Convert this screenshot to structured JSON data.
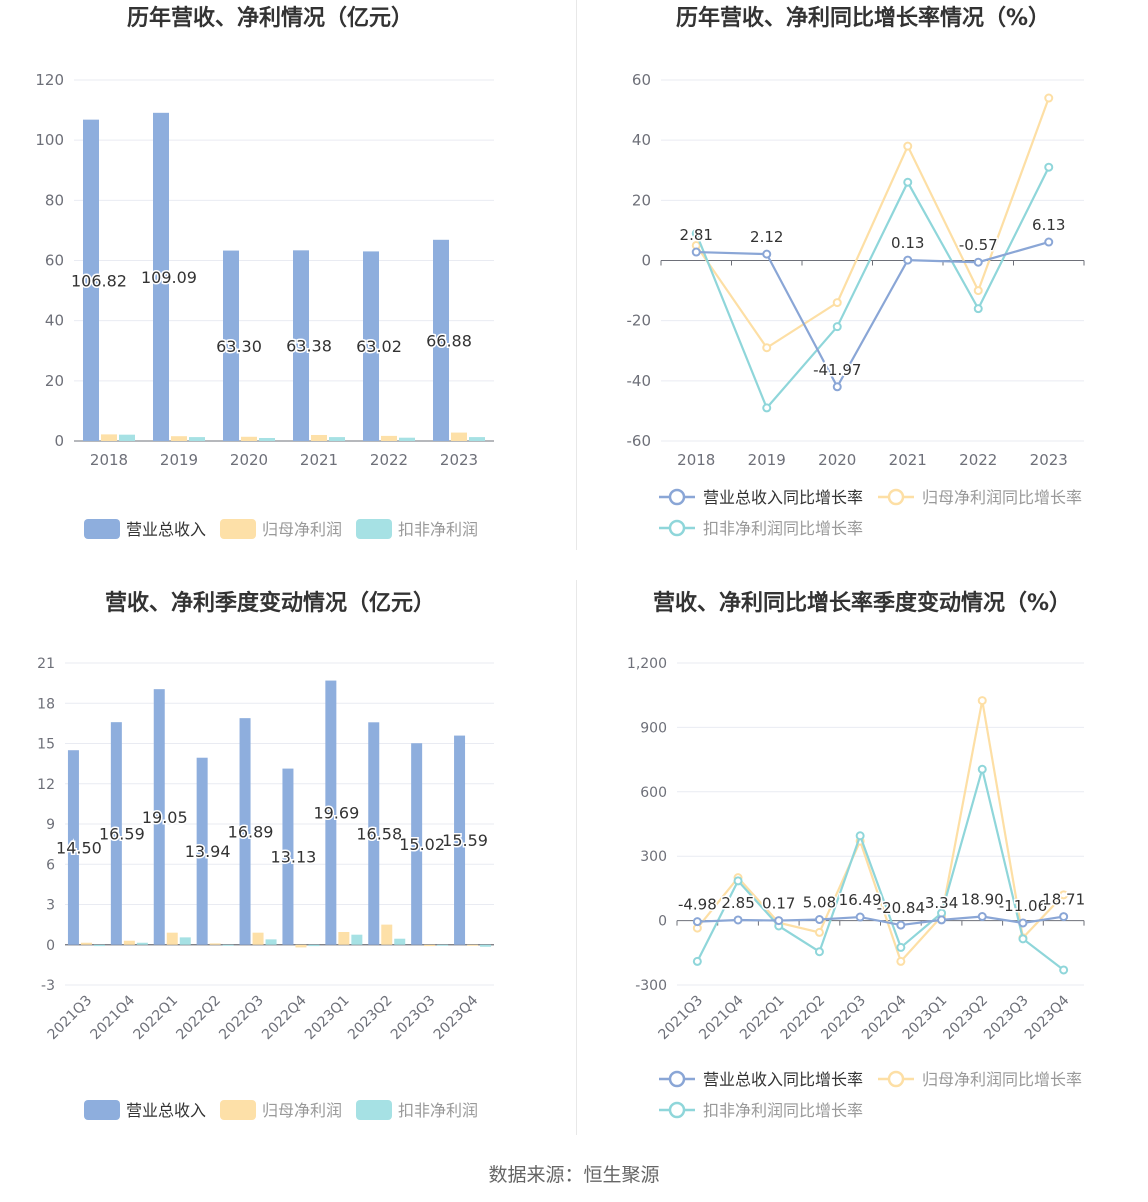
{
  "colors": {
    "revenue": "#8eaedd",
    "net_profit": "#fde0a8",
    "deducted_profit": "#a6e1e4",
    "revenue_line": "#8aa6d6",
    "net_profit_line": "#fddfa5",
    "deducted_line": "#8fd6da",
    "grid": "#e9ebf2",
    "axis_text": "#6e7079",
    "title": "#333333"
  },
  "footer": {
    "source": "数据来源：恒生聚源"
  },
  "chart_data": [
    {
      "id": "annual-bar",
      "type": "bar",
      "title": "历年营收、净利情况（亿元）",
      "categories": [
        "2018",
        "2019",
        "2020",
        "2021",
        "2022",
        "2023"
      ],
      "ylim": [
        0,
        120
      ],
      "yticks": [
        0,
        20,
        40,
        60,
        80,
        100,
        120
      ],
      "series": [
        {
          "name": "营业总收入",
          "values": [
            106.82,
            109.09,
            63.3,
            63.38,
            63.02,
            66.88
          ],
          "labels": [
            "106.82",
            "109.09",
            "63.30",
            "63.38",
            "63.02",
            "66.88"
          ]
        },
        {
          "name": "归母净利润",
          "values": [
            2.2,
            1.6,
            1.4,
            2.0,
            1.7,
            2.8
          ]
        },
        {
          "name": "扣非净利润",
          "values": [
            2.1,
            1.3,
            1.0,
            1.3,
            1.1,
            1.3
          ]
        }
      ],
      "legend": "bottom"
    },
    {
      "id": "annual-line",
      "type": "line",
      "title": "历年营收、净利同比增长率情况（%）",
      "categories": [
        "2018",
        "2019",
        "2020",
        "2021",
        "2022",
        "2023"
      ],
      "ylim": [
        -60,
        60
      ],
      "yticks": [
        -60,
        -40,
        -20,
        0,
        20,
        40,
        60
      ],
      "series": [
        {
          "name": "营业总收入同比增长率",
          "values": [
            2.81,
            2.12,
            -41.97,
            0.13,
            -0.57,
            6.13
          ],
          "labels": [
            "2.81",
            "2.12",
            "-41.97",
            "0.13",
            "-0.57",
            "6.13"
          ]
        },
        {
          "name": "归母净利润同比增长率",
          "values": [
            5,
            -29,
            -14,
            38,
            -10,
            54
          ]
        },
        {
          "name": "扣非净利润同比增长率",
          "values": [
            9,
            -49,
            -22,
            26,
            -16,
            31
          ]
        }
      ],
      "legend": "bottom"
    },
    {
      "id": "quarter-bar",
      "type": "bar",
      "title": "营收、净利季度变动情况（亿元）",
      "categories": [
        "2021Q3",
        "2021Q4",
        "2022Q1",
        "2022Q2",
        "2022Q3",
        "2022Q4",
        "2023Q1",
        "2023Q2",
        "2023Q3",
        "2023Q4"
      ],
      "ylim": [
        -3,
        21
      ],
      "yticks": [
        -3,
        0,
        3,
        6,
        9,
        12,
        15,
        18,
        21
      ],
      "series": [
        {
          "name": "营业总收入",
          "values": [
            14.5,
            16.59,
            19.05,
            13.94,
            16.89,
            13.13,
            19.69,
            16.58,
            15.02,
            15.59
          ],
          "labels": [
            "14.50",
            "16.59",
            "19.05",
            "13.94",
            "16.89",
            "13.13",
            "19.69",
            "16.58",
            "15.02",
            "15.59"
          ]
        },
        {
          "name": "归母净利润",
          "values": [
            0.15,
            0.3,
            0.9,
            0.1,
            0.9,
            -0.2,
            0.95,
            1.5,
            -0.1,
            0.0
          ]
        },
        {
          "name": "扣非净利润",
          "values": [
            -0.1,
            0.15,
            0.55,
            -0.05,
            0.4,
            -0.1,
            0.75,
            0.45,
            -0.05,
            -0.15
          ]
        }
      ],
      "legend": "bottom"
    },
    {
      "id": "quarter-line",
      "type": "line",
      "title": "营收、净利同比增长率季度变动情况（%）",
      "categories": [
        "2021Q3",
        "2021Q4",
        "2022Q1",
        "2022Q2",
        "2022Q3",
        "2022Q4",
        "2023Q1",
        "2023Q2",
        "2023Q3",
        "2023Q4"
      ],
      "ylim": [
        -300,
        1200
      ],
      "yticks": [
        -300,
        0,
        300,
        600,
        900,
        1200
      ],
      "ytick_labels": [
        "-300",
        "0",
        "300",
        "600",
        "900",
        "1,200"
      ],
      "series": [
        {
          "name": "营业总收入同比增长率",
          "values": [
            -4.98,
            2.85,
            0.17,
            5.08,
            16.49,
            -20.84,
            3.34,
            18.9,
            -11.06,
            18.71
          ],
          "labels": [
            "-4.98",
            "2.85",
            "0.17",
            "5.08",
            "16.49",
            "-20.84",
            "3.34",
            "18.90",
            "-11.06",
            "18.71"
          ]
        },
        {
          "name": "归母净利润同比增长率",
          "values": [
            -35,
            200,
            -10,
            -55,
            370,
            -190,
            20,
            1025,
            -80,
            120
          ]
        },
        {
          "name": "扣非净利润同比增长率",
          "values": [
            -190,
            185,
            -25,
            -145,
            395,
            -125,
            35,
            705,
            -85,
            -230
          ]
        }
      ],
      "legend": "bottom"
    }
  ]
}
